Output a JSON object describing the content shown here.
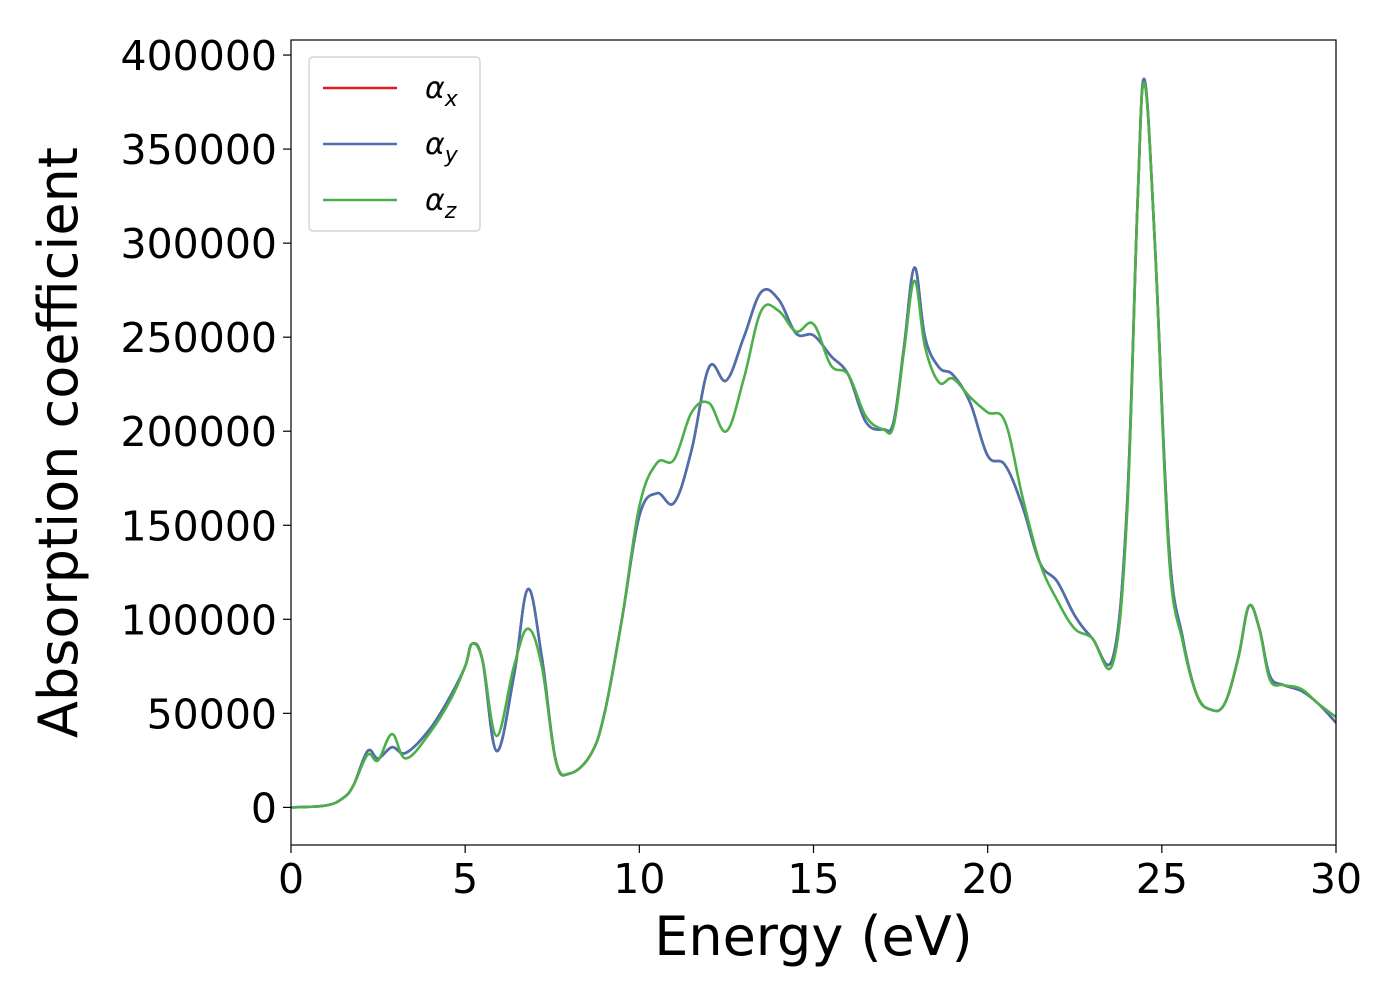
{
  "chart_data": {
    "type": "line",
    "title": "",
    "xlabel": "Energy (eV)",
    "ylabel": "Absorption coefficient",
    "xlim": [
      0,
      30
    ],
    "ylim": [
      -20000,
      408000
    ],
    "xticks": [
      0,
      5,
      10,
      15,
      20,
      25,
      30
    ],
    "yticks": [
      0,
      50000,
      100000,
      150000,
      200000,
      250000,
      300000,
      350000,
      400000
    ],
    "grid": false,
    "legend_position": "top-left",
    "series": [
      {
        "name": "α_x",
        "label_base": "α",
        "label_sub": "x",
        "color": "#e41a1c",
        "x": [
          0,
          1,
          1.5,
          1.8,
          2.2,
          2.5,
          2.9,
          3.3,
          4.0,
          4.6,
          5.0,
          5.2,
          5.5,
          5.9,
          6.4,
          6.8,
          7.2,
          7.6,
          8.0,
          8.6,
          9.0,
          9.5,
          10.0,
          10.5,
          11.0,
          11.5,
          12.0,
          12.5,
          13.0,
          13.5,
          14.0,
          14.5,
          15.0,
          15.5,
          16.0,
          16.5,
          17.0,
          17.3,
          17.6,
          17.9,
          18.2,
          18.6,
          19.0,
          19.5,
          20.0,
          20.5,
          21.0,
          21.5,
          22.0,
          22.5,
          23.0,
          23.6,
          24.0,
          24.3,
          24.5,
          24.8,
          25.2,
          25.6,
          26.0,
          26.4,
          26.8,
          27.2,
          27.5,
          27.8,
          28.1,
          28.5,
          29.0,
          29.5,
          30.0
        ],
        "values": [
          0,
          1000,
          5000,
          12000,
          30000,
          26000,
          32000,
          29000,
          42000,
          60000,
          75000,
          87000,
          78000,
          30000,
          70000,
          116000,
          80000,
          25000,
          18000,
          28000,
          50000,
          100000,
          155000,
          167000,
          162000,
          190000,
          234000,
          227000,
          250000,
          274000,
          270000,
          252000,
          251000,
          240000,
          230000,
          205000,
          201000,
          205000,
          245000,
          287000,
          250000,
          234000,
          230000,
          215000,
          187000,
          182000,
          160000,
          130000,
          120000,
          102000,
          90000,
          80000,
          160000,
          320000,
          387000,
          300000,
          140000,
          90000,
          60000,
          52000,
          55000,
          80000,
          107000,
          95000,
          70000,
          65000,
          62000,
          55000,
          45000
        ]
      },
      {
        "name": "α_y",
        "label_base": "α",
        "label_sub": "y",
        "color": "#4a72b0",
        "x": [
          0,
          1,
          1.5,
          1.8,
          2.2,
          2.5,
          2.9,
          3.3,
          4.0,
          4.6,
          5.0,
          5.2,
          5.5,
          5.9,
          6.4,
          6.8,
          7.2,
          7.6,
          8.0,
          8.6,
          9.0,
          9.5,
          10.0,
          10.5,
          11.0,
          11.5,
          12.0,
          12.5,
          13.0,
          13.5,
          14.0,
          14.5,
          15.0,
          15.5,
          16.0,
          16.5,
          17.0,
          17.3,
          17.6,
          17.9,
          18.2,
          18.6,
          19.0,
          19.5,
          20.0,
          20.5,
          21.0,
          21.5,
          22.0,
          22.5,
          23.0,
          23.6,
          24.0,
          24.3,
          24.5,
          24.8,
          25.2,
          25.6,
          26.0,
          26.4,
          26.8,
          27.2,
          27.5,
          27.8,
          28.1,
          28.5,
          29.0,
          29.5,
          30.0
        ],
        "values": [
          0,
          1000,
          5000,
          12000,
          30000,
          26000,
          32000,
          29000,
          42000,
          60000,
          75000,
          87000,
          78000,
          30000,
          70000,
          116000,
          80000,
          25000,
          18000,
          28000,
          50000,
          100000,
          155000,
          167000,
          162000,
          190000,
          234000,
          227000,
          250000,
          274000,
          270000,
          252000,
          251000,
          240000,
          230000,
          205000,
          201000,
          205000,
          245000,
          287000,
          250000,
          234000,
          230000,
          215000,
          187000,
          182000,
          160000,
          130000,
          120000,
          102000,
          90000,
          80000,
          160000,
          320000,
          387000,
          300000,
          140000,
          90000,
          60000,
          52000,
          55000,
          80000,
          107000,
          95000,
          70000,
          65000,
          62000,
          55000,
          45000
        ]
      },
      {
        "name": "α_z",
        "label_base": "α",
        "label_sub": "z",
        "color": "#4daf4a",
        "x": [
          0,
          1,
          1.5,
          1.8,
          2.2,
          2.5,
          2.9,
          3.3,
          4.0,
          4.6,
          5.0,
          5.2,
          5.5,
          5.9,
          6.4,
          6.8,
          7.2,
          7.6,
          8.0,
          8.6,
          9.0,
          9.5,
          10.0,
          10.5,
          11.0,
          11.5,
          12.0,
          12.5,
          13.0,
          13.5,
          14.0,
          14.5,
          15.0,
          15.5,
          16.0,
          16.5,
          17.0,
          17.3,
          17.6,
          17.9,
          18.2,
          18.6,
          19.0,
          19.5,
          20.0,
          20.5,
          21.0,
          21.5,
          22.0,
          22.5,
          23.0,
          23.6,
          24.0,
          24.3,
          24.5,
          24.8,
          25.2,
          25.6,
          26.0,
          26.4,
          26.8,
          27.2,
          27.5,
          27.8,
          28.1,
          28.5,
          29.0,
          29.5,
          30.0
        ],
        "values": [
          0,
          1000,
          5000,
          12000,
          28000,
          25000,
          39000,
          26000,
          40000,
          58000,
          75000,
          87000,
          78000,
          38000,
          75000,
          95000,
          75000,
          25000,
          18000,
          28000,
          50000,
          100000,
          160000,
          183000,
          185000,
          210000,
          215000,
          200000,
          228000,
          264000,
          264000,
          253000,
          257000,
          235000,
          230000,
          208000,
          201000,
          203000,
          243000,
          280000,
          245000,
          226000,
          228000,
          218000,
          210000,
          205000,
          165000,
          130000,
          110000,
          95000,
          90000,
          77000,
          155000,
          320000,
          385000,
          300000,
          135000,
          88000,
          60000,
          52000,
          55000,
          80000,
          107000,
          95000,
          68000,
          65000,
          63000,
          55000,
          48000
        ]
      }
    ]
  }
}
